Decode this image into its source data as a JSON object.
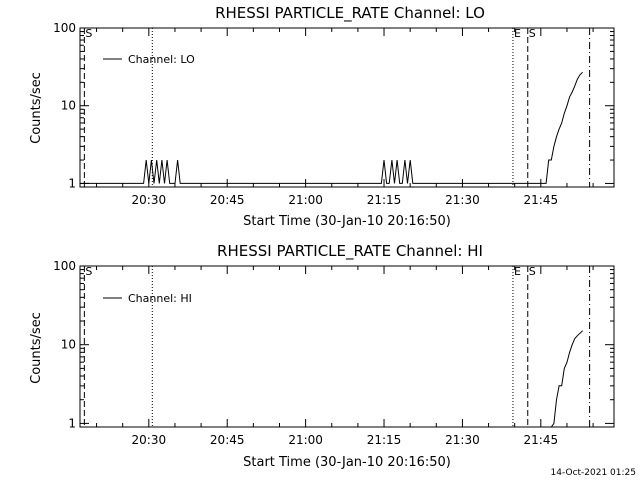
{
  "timestamp": "14-Oct-2021 01:25",
  "chart_data": [
    {
      "type": "line",
      "title": "RHESSI PARTICLE_RATE Channel: LO",
      "xlabel": "Start Time (30-Jan-10 20:16:50)",
      "ylabel": "Counts/sec",
      "yscale": "log",
      "ylim": [
        0.9,
        100
      ],
      "xlim": [
        "20:16:50",
        "21:59:00"
      ],
      "x_ticks": [
        "20:30",
        "20:45",
        "21:00",
        "21:15",
        "21:30",
        "21:45"
      ],
      "y_ticks": [
        "1",
        "10",
        "100"
      ],
      "legend": {
        "position": "top-left",
        "entries": [
          "Channel: LO"
        ]
      },
      "markers": [
        {
          "time": "20:17:40",
          "style": "dashed",
          "label": "S"
        },
        {
          "time": "20:30:40",
          "style": "dotted",
          "label": ""
        },
        {
          "time": "21:39:40",
          "style": "dotted",
          "label": "E"
        },
        {
          "time": "21:42:30",
          "style": "dashed",
          "label": "S"
        },
        {
          "time": "21:54:20",
          "style": "dashdot",
          "label": ""
        }
      ],
      "series": [
        {
          "name": "Channel: LO",
          "x": [
            "20:16:50",
            "20:29:00",
            "20:29:30",
            "20:30:00",
            "20:30:30",
            "20:31:00",
            "20:31:30",
            "20:32:00",
            "20:32:30",
            "20:33:00",
            "20:33:30",
            "20:34:00",
            "20:34:30",
            "20:35:00",
            "20:35:30",
            "20:36:00",
            "21:14:30",
            "21:15:00",
            "21:15:30",
            "21:16:00",
            "21:16:30",
            "21:17:00",
            "21:17:30",
            "21:18:00",
            "21:18:30",
            "21:19:00",
            "21:19:30",
            "21:20:00",
            "21:20:30",
            "21:46:00",
            "21:46:30",
            "21:47:00",
            "21:47:30",
            "21:48:00",
            "21:48:30",
            "21:49:00",
            "21:49:30",
            "21:50:00",
            "21:50:30",
            "21:51:00",
            "21:51:30",
            "21:52:00",
            "21:52:30",
            "21:53:00"
          ],
          "y": [
            1,
            1,
            2,
            1,
            2,
            1,
            2,
            1,
            2,
            1,
            2,
            1,
            1,
            1,
            2,
            1,
            1,
            2,
            1,
            1,
            2,
            1,
            2,
            1,
            1,
            2,
            1,
            2,
            1,
            1,
            2,
            2,
            3,
            4,
            5,
            6,
            8,
            10,
            13,
            15,
            18,
            22,
            25,
            27
          ]
        }
      ]
    },
    {
      "type": "line",
      "title": "RHESSI PARTICLE_RATE Channel: HI",
      "xlabel": "Start Time (30-Jan-10 20:16:50)",
      "ylabel": "Counts/sec",
      "yscale": "log",
      "ylim": [
        0.9,
        100
      ],
      "xlim": [
        "20:16:50",
        "21:59:00"
      ],
      "x_ticks": [
        "20:30",
        "20:45",
        "21:00",
        "21:15",
        "21:30",
        "21:45"
      ],
      "y_ticks": [
        "1",
        "10",
        "100"
      ],
      "legend": {
        "position": "top-left",
        "entries": [
          "Channel: HI"
        ]
      },
      "markers": [
        {
          "time": "20:17:40",
          "style": "dashed",
          "label": "S"
        },
        {
          "time": "20:30:40",
          "style": "dotted",
          "label": ""
        },
        {
          "time": "21:39:40",
          "style": "dotted",
          "label": "E"
        },
        {
          "time": "21:42:30",
          "style": "dashed",
          "label": "S"
        },
        {
          "time": "21:54:20",
          "style": "dashdot",
          "label": ""
        }
      ],
      "series": [
        {
          "name": "Channel: HI",
          "x": [
            "20:16:50",
            "21:47:00",
            "21:47:30",
            "21:48:00",
            "21:48:30",
            "21:49:00",
            "21:49:30",
            "21:50:00",
            "21:50:30",
            "21:51:00",
            "21:51:30",
            "21:52:00",
            "21:52:30",
            "21:53:00"
          ],
          "y": [
            0.9,
            0.9,
            1,
            2,
            3,
            3,
            5,
            6,
            8,
            10,
            12,
            13,
            14,
            15
          ]
        }
      ]
    }
  ]
}
